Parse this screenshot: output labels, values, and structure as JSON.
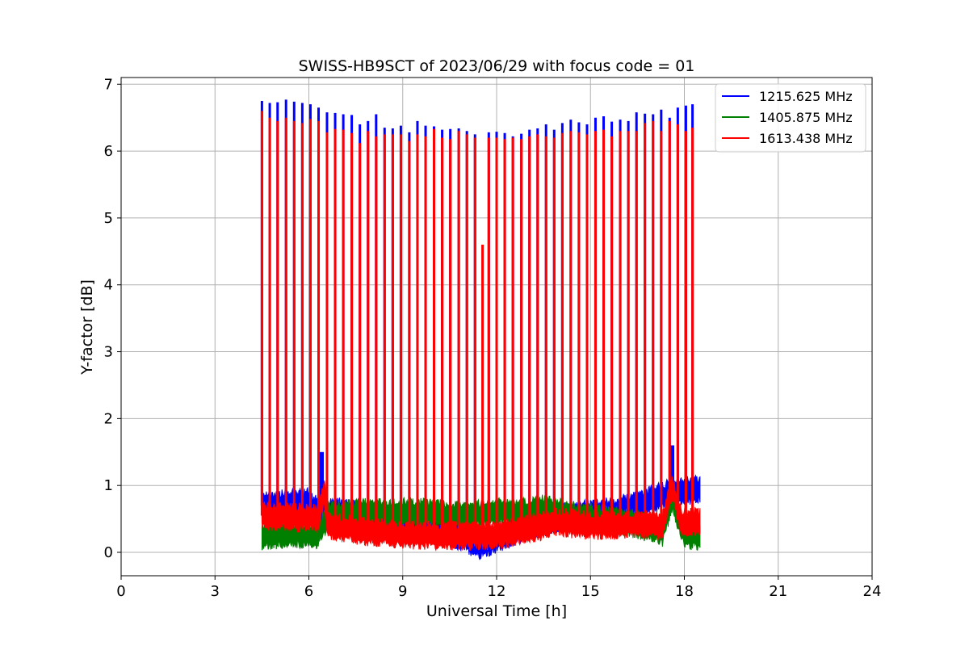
{
  "chart_data": {
    "type": "line",
    "title": "SWISS-HB9SCT of 2023/06/29 with focus code = 01",
    "xlabel": "Universal Time [h]",
    "ylabel": "Y-factor [dB]",
    "xlim": [
      0,
      24
    ],
    "ylim": [
      -0.35,
      7.1
    ],
    "xticks": [
      0,
      3,
      6,
      9,
      12,
      15,
      18,
      21,
      24
    ],
    "yticks": [
      0,
      1,
      2,
      3,
      4,
      5,
      6,
      7
    ],
    "xtick_labels": [
      "0",
      "3",
      "6",
      "9",
      "12",
      "15",
      "18",
      "21",
      "24"
    ],
    "ytick_labels": [
      "0",
      "1",
      "2",
      "3",
      "4",
      "5",
      "6",
      "7"
    ],
    "grid": true,
    "legend_position": "top-right",
    "data_start": 4.5,
    "data_end": 18.5,
    "series": [
      {
        "name": "1215.625 MHz",
        "color": "#0000ff",
        "baseline": [
          [
            4.5,
            0.7
          ],
          [
            6.0,
            0.75
          ],
          [
            6.3,
            0.6
          ],
          [
            7.0,
            0.6
          ],
          [
            8.5,
            0.5
          ],
          [
            9.5,
            0.45
          ],
          [
            10.5,
            0.3
          ],
          [
            11.5,
            0.1
          ],
          [
            12.5,
            0.3
          ],
          [
            13.5,
            0.45
          ],
          [
            14.5,
            0.55
          ],
          [
            15.5,
            0.6
          ],
          [
            16.5,
            0.7
          ],
          [
            17.3,
            0.85
          ],
          [
            17.6,
            0.9
          ],
          [
            18.5,
            0.95
          ]
        ],
        "peaks": [
          [
            4.5,
            6.75
          ],
          [
            4.75,
            6.72
          ],
          [
            5.0,
            6.73
          ],
          [
            5.27,
            6.77
          ],
          [
            5.53,
            6.74
          ],
          [
            5.79,
            6.72
          ],
          [
            6.05,
            6.7
          ],
          [
            6.31,
            6.65
          ],
          [
            6.58,
            6.58
          ],
          [
            6.84,
            6.57
          ],
          [
            7.1,
            6.55
          ],
          [
            7.37,
            6.54
          ],
          [
            7.63,
            6.4
          ],
          [
            7.89,
            6.45
          ],
          [
            8.15,
            6.55
          ],
          [
            8.42,
            6.35
          ],
          [
            8.68,
            6.34
          ],
          [
            8.94,
            6.38
          ],
          [
            9.21,
            6.28
          ],
          [
            9.47,
            6.45
          ],
          [
            9.73,
            6.38
          ],
          [
            10.0,
            6.37
          ],
          [
            10.26,
            6.32
          ],
          [
            10.52,
            6.33
          ],
          [
            10.79,
            6.34
          ],
          [
            11.05,
            6.3
          ],
          [
            11.31,
            6.25
          ],
          [
            11.75,
            6.28
          ],
          [
            12.0,
            6.29
          ],
          [
            12.26,
            6.27
          ],
          [
            12.52,
            6.22
          ],
          [
            12.79,
            6.26
          ],
          [
            13.05,
            6.32
          ],
          [
            13.31,
            6.34
          ],
          [
            13.58,
            6.4
          ],
          [
            13.84,
            6.32
          ],
          [
            14.1,
            6.42
          ],
          [
            14.37,
            6.47
          ],
          [
            14.63,
            6.43
          ],
          [
            14.89,
            6.4
          ],
          [
            15.16,
            6.5
          ],
          [
            15.42,
            6.52
          ],
          [
            15.68,
            6.44
          ],
          [
            15.95,
            6.47
          ],
          [
            16.21,
            6.45
          ],
          [
            16.47,
            6.58
          ],
          [
            16.74,
            6.56
          ],
          [
            17.0,
            6.55
          ],
          [
            17.26,
            6.62
          ],
          [
            17.53,
            6.5
          ],
          [
            17.79,
            6.65
          ],
          [
            18.05,
            6.68
          ],
          [
            18.26,
            6.7
          ]
        ],
        "bumps": [
          [
            6.4,
            1.5
          ],
          [
            17.6,
            1.6
          ]
        ]
      },
      {
        "name": "1405.875 MHz",
        "color": "#008000",
        "baseline": [
          [
            4.5,
            0.25
          ],
          [
            5.5,
            0.28
          ],
          [
            6.3,
            0.25
          ],
          [
            6.6,
            0.55
          ],
          [
            8.0,
            0.6
          ],
          [
            9.5,
            0.6
          ],
          [
            11.0,
            0.55
          ],
          [
            12.0,
            0.6
          ],
          [
            13.0,
            0.6
          ],
          [
            13.5,
            0.65
          ],
          [
            14.5,
            0.55
          ],
          [
            15.5,
            0.5
          ],
          [
            16.5,
            0.42
          ],
          [
            17.3,
            0.3
          ],
          [
            17.6,
            0.8
          ],
          [
            18.0,
            0.25
          ],
          [
            18.5,
            0.25
          ]
        ],
        "peaks": [],
        "bumps": []
      },
      {
        "name": "1613.438 MHz",
        "color": "#ff0000",
        "baseline": [
          [
            4.5,
            0.55
          ],
          [
            6.3,
            0.5
          ],
          [
            6.5,
            0.9
          ],
          [
            6.6,
            0.4
          ],
          [
            8.0,
            0.3
          ],
          [
            9.5,
            0.25
          ],
          [
            11.0,
            0.25
          ],
          [
            12.0,
            0.25
          ],
          [
            13.0,
            0.35
          ],
          [
            14.0,
            0.45
          ],
          [
            15.0,
            0.4
          ],
          [
            16.0,
            0.42
          ],
          [
            17.3,
            0.4
          ],
          [
            17.6,
            1.0
          ],
          [
            17.9,
            0.45
          ],
          [
            18.5,
            0.45
          ]
        ],
        "peaks": [
          [
            4.5,
            6.6
          ],
          [
            4.75,
            6.5
          ],
          [
            5.0,
            6.45
          ],
          [
            5.27,
            6.5
          ],
          [
            5.53,
            6.45
          ],
          [
            5.79,
            6.42
          ],
          [
            6.05,
            6.48
          ],
          [
            6.31,
            6.45
          ],
          [
            6.58,
            6.28
          ],
          [
            6.84,
            6.33
          ],
          [
            7.1,
            6.32
          ],
          [
            7.37,
            6.27
          ],
          [
            7.63,
            6.12
          ],
          [
            7.89,
            6.3
          ],
          [
            8.15,
            6.22
          ],
          [
            8.42,
            6.25
          ],
          [
            8.68,
            6.25
          ],
          [
            8.94,
            6.25
          ],
          [
            9.21,
            6.15
          ],
          [
            9.47,
            6.25
          ],
          [
            9.73,
            6.22
          ],
          [
            10.0,
            6.33
          ],
          [
            10.26,
            6.2
          ],
          [
            10.52,
            6.18
          ],
          [
            10.79,
            6.3
          ],
          [
            11.05,
            6.25
          ],
          [
            11.31,
            6.2
          ],
          [
            11.55,
            4.6
          ],
          [
            11.75,
            6.2
          ],
          [
            12.0,
            6.2
          ],
          [
            12.26,
            6.18
          ],
          [
            12.52,
            6.2
          ],
          [
            12.79,
            6.18
          ],
          [
            13.05,
            6.22
          ],
          [
            13.31,
            6.25
          ],
          [
            13.58,
            6.22
          ],
          [
            13.84,
            6.2
          ],
          [
            14.1,
            6.27
          ],
          [
            14.37,
            6.3
          ],
          [
            14.63,
            6.28
          ],
          [
            14.89,
            6.25
          ],
          [
            15.16,
            6.3
          ],
          [
            15.42,
            6.32
          ],
          [
            15.68,
            6.22
          ],
          [
            15.95,
            6.3
          ],
          [
            16.21,
            6.3
          ],
          [
            16.47,
            6.3
          ],
          [
            16.74,
            6.42
          ],
          [
            17.0,
            6.45
          ],
          [
            17.26,
            6.3
          ],
          [
            17.53,
            6.45
          ],
          [
            17.79,
            6.4
          ],
          [
            18.05,
            6.3
          ],
          [
            18.26,
            6.35
          ]
        ],
        "bumps": []
      }
    ]
  }
}
